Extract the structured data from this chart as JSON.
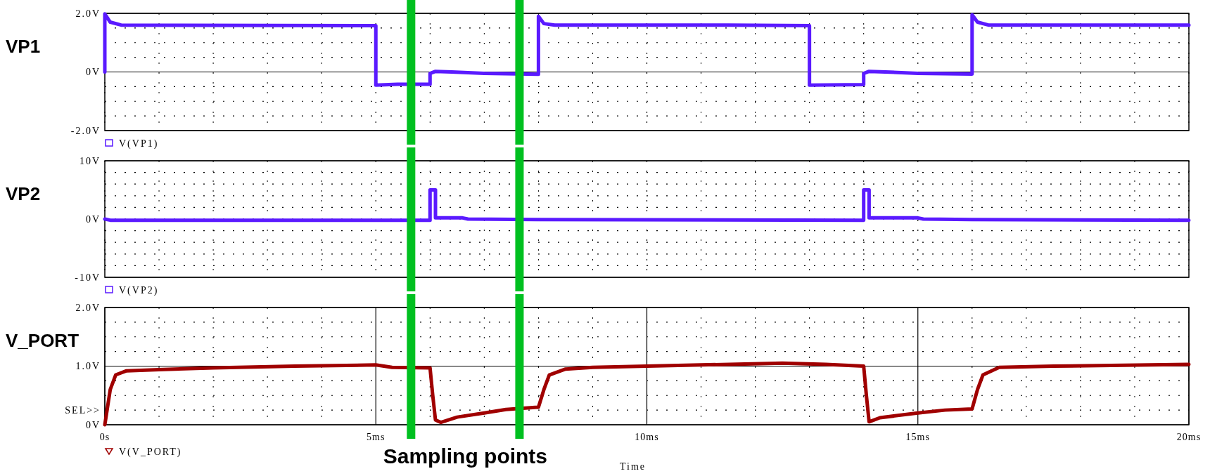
{
  "chart_data": [
    {
      "type": "line",
      "ylabel": "VP1",
      "xlim": [
        0,
        20
      ],
      "xticks": [
        {
          "value": 0,
          "label": null
        },
        {
          "value": 1,
          "label": null
        },
        {
          "value": 2,
          "label": null
        },
        {
          "value": 3,
          "label": null
        },
        {
          "value": 4,
          "label": null
        },
        {
          "value": 5,
          "label": null
        },
        {
          "value": 6,
          "label": null
        },
        {
          "value": 7,
          "label": null
        },
        {
          "value": 8,
          "label": null
        },
        {
          "value": 9,
          "label": null
        },
        {
          "value": 10,
          "label": null
        },
        {
          "value": 11,
          "label": null
        },
        {
          "value": 12,
          "label": null
        },
        {
          "value": 13,
          "label": null
        },
        {
          "value": 14,
          "label": null
        },
        {
          "value": 15,
          "label": null
        },
        {
          "value": 16,
          "label": null
        },
        {
          "value": 17,
          "label": null
        },
        {
          "value": 18,
          "label": null
        },
        {
          "value": 19,
          "label": null
        },
        {
          "value": 20,
          "label": null
        }
      ],
      "ylim": [
        -2,
        2
      ],
      "yticks": [
        {
          "value": -2,
          "label": "-2.0V"
        },
        {
          "value": -1.5,
          "label": null
        },
        {
          "value": -1,
          "label": null
        },
        {
          "value": -0.5,
          "label": null
        },
        {
          "value": 0,
          "label": "0V"
        },
        {
          "value": 0.5,
          "label": null
        },
        {
          "value": 1,
          "label": null
        },
        {
          "value": 1.5,
          "label": null
        },
        {
          "value": 2,
          "label": "2.0V"
        }
      ],
      "grid": true,
      "legend": "bottom left",
      "tick_labels": "y",
      "ref_lines": [
        {
          "axis": "x",
          "value": 5.65,
          "color": "#00c020"
        },
        {
          "axis": "x",
          "value": 7.65,
          "color": "#00c020"
        }
      ],
      "series": [
        {
          "name": "V(VP1)",
          "color": "#5a1aff",
          "x": [
            0,
            0,
            0.1,
            0.3,
            5,
            5,
            5.4,
            6,
            6,
            6.1,
            6.4,
            7,
            8,
            8,
            8.1,
            8.3,
            11.5,
            13,
            13,
            14,
            14,
            14.1,
            14.4,
            15,
            16,
            16,
            16.1,
            16.3,
            20
          ],
          "values": [
            0,
            1.98,
            1.7,
            1.6,
            1.58,
            -0.45,
            -0.42,
            -0.42,
            -0.05,
            0.02,
            0,
            -0.05,
            -0.08,
            1.9,
            1.65,
            1.6,
            1.6,
            1.58,
            -0.45,
            -0.43,
            -0.05,
            0.02,
            0,
            -0.05,
            -0.07,
            1.95,
            1.7,
            1.6,
            1.6
          ]
        }
      ]
    },
    {
      "type": "line",
      "ylabel": "VP2",
      "xlim": [
        0,
        20
      ],
      "xticks": [
        {
          "value": 0,
          "label": null
        },
        {
          "value": 1,
          "label": null
        },
        {
          "value": 2,
          "label": null
        },
        {
          "value": 3,
          "label": null
        },
        {
          "value": 4,
          "label": null
        },
        {
          "value": 5,
          "label": null
        },
        {
          "value": 6,
          "label": null
        },
        {
          "value": 7,
          "label": null
        },
        {
          "value": 8,
          "label": null
        },
        {
          "value": 9,
          "label": null
        },
        {
          "value": 10,
          "label": null
        },
        {
          "value": 11,
          "label": null
        },
        {
          "value": 12,
          "label": null
        },
        {
          "value": 13,
          "label": null
        },
        {
          "value": 14,
          "label": null
        },
        {
          "value": 15,
          "label": null
        },
        {
          "value": 16,
          "label": null
        },
        {
          "value": 17,
          "label": null
        },
        {
          "value": 18,
          "label": null
        },
        {
          "value": 19,
          "label": null
        },
        {
          "value": 20,
          "label": null
        }
      ],
      "ylim": [
        -10,
        10
      ],
      "yticks": [
        {
          "value": -10,
          "label": "-10V"
        },
        {
          "value": -8,
          "label": null
        },
        {
          "value": -6,
          "label": null
        },
        {
          "value": -4,
          "label": null
        },
        {
          "value": -2,
          "label": null
        },
        {
          "value": 0,
          "label": "0V"
        },
        {
          "value": 2,
          "label": null
        },
        {
          "value": 4,
          "label": null
        },
        {
          "value": 6,
          "label": null
        },
        {
          "value": 8,
          "label": null
        },
        {
          "value": 10,
          "label": "10V"
        }
      ],
      "grid": true,
      "legend": "bottom left",
      "tick_labels": "y",
      "ref_lines": [
        {
          "axis": "x",
          "value": 5.65,
          "color": "#00c020"
        },
        {
          "axis": "x",
          "value": 7.65,
          "color": "#00c020"
        }
      ],
      "series": [
        {
          "name": "V(VP2)",
          "color": "#5a1aff",
          "x": [
            0,
            0.1,
            6,
            6,
            6.1,
            6.1,
            6.6,
            6.7,
            8,
            14,
            14,
            14.1,
            14.1,
            15,
            15.1,
            16,
            20
          ],
          "values": [
            0,
            -0.2,
            -0.2,
            5,
            5,
            0.2,
            0.2,
            0,
            -0.1,
            -0.2,
            5,
            5,
            0.2,
            0.2,
            0,
            -0.1,
            -0.2
          ]
        }
      ]
    },
    {
      "type": "line",
      "ylabel": "V_PORT",
      "xlabel": "Time",
      "xlim": [
        0,
        20
      ],
      "xticks": [
        {
          "value": 0,
          "label": "0s"
        },
        {
          "value": 1,
          "label": null
        },
        {
          "value": 2,
          "label": null
        },
        {
          "value": 3,
          "label": null
        },
        {
          "value": 4,
          "label": null
        },
        {
          "value": 5,
          "label": "5ms"
        },
        {
          "value": 6,
          "label": null
        },
        {
          "value": 7,
          "label": null
        },
        {
          "value": 8,
          "label": null
        },
        {
          "value": 9,
          "label": null
        },
        {
          "value": 10,
          "label": "10ms"
        },
        {
          "value": 11,
          "label": null
        },
        {
          "value": 12,
          "label": null
        },
        {
          "value": 13,
          "label": null
        },
        {
          "value": 14,
          "label": null
        },
        {
          "value": 15,
          "label": "15ms"
        },
        {
          "value": 16,
          "label": null
        },
        {
          "value": 17,
          "label": null
        },
        {
          "value": 18,
          "label": null
        },
        {
          "value": 19,
          "label": null
        },
        {
          "value": 20,
          "label": "20ms"
        }
      ],
      "ylim": [
        0,
        2
      ],
      "yticks": [
        {
          "value": 0,
          "label": "0V"
        },
        {
          "value": 0.25,
          "label": "SEL>>"
        },
        {
          "value": 0.5,
          "label": null
        },
        {
          "value": 0.75,
          "label": null
        },
        {
          "value": 1,
          "label": "1.0V"
        },
        {
          "value": 1.25,
          "label": null
        },
        {
          "value": 1.5,
          "label": null
        },
        {
          "value": 1.75,
          "label": null
        },
        {
          "value": 2,
          "label": "2.0V"
        }
      ],
      "grid": true,
      "legend": "bottom left",
      "ref_lines": [
        {
          "axis": "x",
          "value": 5.65,
          "color": "#00c020"
        },
        {
          "axis": "x",
          "value": 7.65,
          "color": "#00c020"
        }
      ],
      "annotations": [
        "Sampling points"
      ],
      "series": [
        {
          "name": "V(V_PORT)",
          "color": "#a00000",
          "x": [
            0,
            0.1,
            0.2,
            0.4,
            1,
            2,
            3.5,
            5,
            5.3,
            6,
            6.05,
            6.1,
            6.2,
            6.5,
            7,
            7.4,
            8,
            8.1,
            8.2,
            8.5,
            9,
            10,
            11,
            12.5,
            13.3,
            14,
            14.05,
            14.1,
            14.3,
            15,
            15.5,
            16,
            16.1,
            16.2,
            16.5,
            17.5,
            20
          ],
          "values": [
            0,
            0.6,
            0.85,
            0.92,
            0.94,
            0.97,
            1.0,
            1.02,
            0.98,
            0.97,
            0.5,
            0.08,
            0.04,
            0.13,
            0.2,
            0.26,
            0.3,
            0.6,
            0.85,
            0.95,
            0.98,
            1.0,
            1.02,
            1.05,
            1.03,
            1.0,
            0.5,
            0.05,
            0.12,
            0.2,
            0.25,
            0.27,
            0.6,
            0.85,
            0.98,
            1.0,
            1.03
          ]
        }
      ]
    }
  ]
}
